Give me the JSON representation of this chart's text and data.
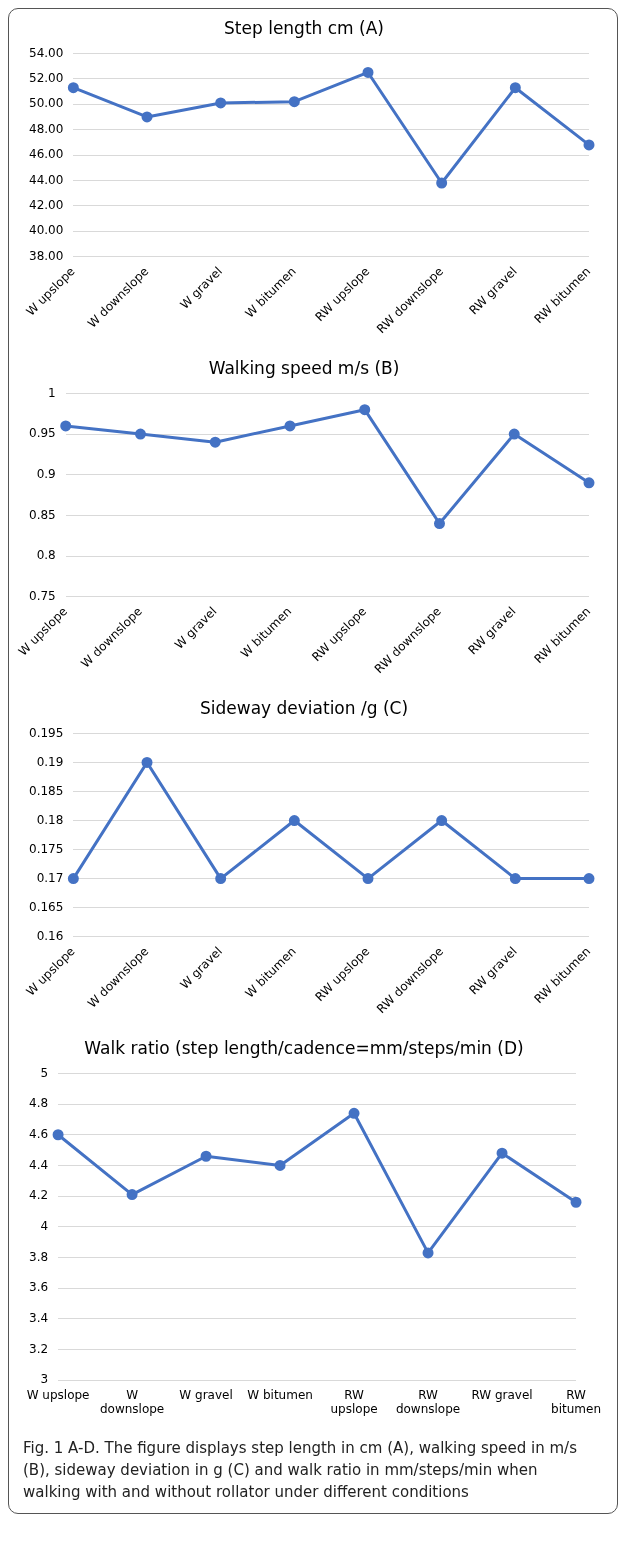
{
  "chart_data": [
    {
      "type": "line",
      "title": "Step length cm (A)",
      "categories": [
        "W upslope",
        "W downslope",
        "W gravel",
        "W bitumen",
        "RW upslope",
        "RW downslope",
        "RW gravel",
        "RW bitumen"
      ],
      "series": [
        {
          "color": "#4472c4",
          "values": [
            51.3,
            49.0,
            50.1,
            50.2,
            52.5,
            43.8,
            51.3,
            46.8
          ]
        }
      ],
      "ylim": [
        38,
        54
      ],
      "yticks": [
        {
          "value": 38,
          "label": "38.00"
        },
        {
          "value": 40,
          "label": "40.00"
        },
        {
          "value": 42,
          "label": "42.00"
        },
        {
          "value": 44,
          "label": "44.00"
        },
        {
          "value": 46,
          "label": "46.00"
        },
        {
          "value": 48,
          "label": "48.00"
        },
        {
          "value": 50,
          "label": "50.00"
        },
        {
          "value": 52,
          "label": "52.00"
        },
        {
          "value": 54,
          "label": "54.00"
        }
      ],
      "grid": "y",
      "marker": "circle",
      "line_style": "solid"
    },
    {
      "type": "line",
      "title": "Walking speed m/s (B)",
      "categories": [
        "W upslope",
        "W downslope",
        "W gravel",
        "W bitumen",
        "RW upslope",
        "RW downslope",
        "RW gravel",
        "RW bitumen"
      ],
      "series": [
        {
          "color": "#4472c4",
          "values": [
            0.96,
            0.95,
            0.94,
            0.96,
            0.98,
            0.84,
            0.95,
            0.89
          ]
        }
      ],
      "ylim": [
        0.75,
        1
      ],
      "yticks": [
        0.75,
        0.8,
        0.85,
        0.9,
        0.95,
        1
      ],
      "grid": "y",
      "marker": "circle",
      "line_style": "solid"
    },
    {
      "type": "line",
      "title": "Sideway deviation /g (C)",
      "categories": [
        "W upslope",
        "W downslope",
        "W gravel",
        "W bitumen",
        "RW upslope",
        "RW downslope",
        "RW gravel",
        "RW bitumen"
      ],
      "series": [
        {
          "color": "#4472c4",
          "values": [
            0.17,
            0.19,
            0.17,
            0.18,
            0.17,
            0.18,
            0.17,
            0.17
          ]
        }
      ],
      "ylim": [
        0.16,
        0.195
      ],
      "yticks": [
        0.16,
        0.165,
        0.17,
        0.175,
        0.18,
        0.185,
        0.19,
        0.195
      ],
      "grid": "y",
      "marker": "circle",
      "line_style": "solid"
    },
    {
      "type": "line",
      "title": "Walk ratio (step length/cadence=mm/steps/min (D)",
      "categories": [
        "W upslope",
        "W downslope",
        "W gravel",
        "W bitumen",
        "RW upslope",
        "RW downslope",
        "RW gravel",
        "RW bitumen"
      ],
      "series": [
        {
          "color": "#4472c4",
          "values": [
            4.6,
            4.21,
            4.46,
            4.4,
            4.74,
            3.83,
            4.48,
            4.16
          ]
        }
      ],
      "ylim": [
        3,
        5
      ],
      "yticks": [
        3,
        3.2,
        3.4,
        3.6,
        3.8,
        4,
        4.2,
        4.4,
        4.6,
        4.8,
        5
      ],
      "grid": "y",
      "marker": "circle",
      "line_style": "solid",
      "annotations": [
        "Fig. 1  A-D. The figure displays step length in cm (A), walking speed in m/s (B), sideway deviation in g (C) and walk ratio in mm/steps/min when walking with and without rollator under different conditions"
      ]
    }
  ]
}
